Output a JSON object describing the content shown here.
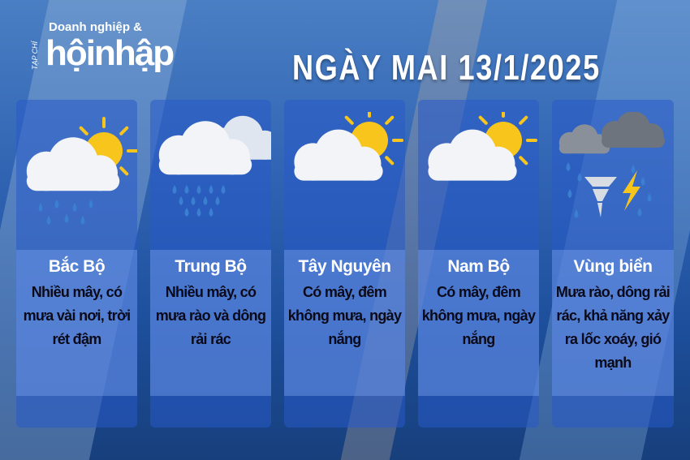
{
  "logo": {
    "tagline": "Doanh nghiệp &",
    "name": "hộinhập",
    "prefix": "TẠP CHÍ"
  },
  "title": "NGÀY MAI 13/1/2025",
  "regions": [
    {
      "name": "Bắc Bộ",
      "desc": "Nhiều mây, có mưa vài nơi, trời rét đậm",
      "icon": "sun-cloud-rain-icon"
    },
    {
      "name": "Trung Bộ",
      "desc": "Nhiều mây, có mưa rào và dông rải rác",
      "icon": "cloud-heavy-rain-icon"
    },
    {
      "name": "Tây Nguyên",
      "desc": "Có mây, đêm không mưa, ngày nắng",
      "icon": "sun-cloud-icon"
    },
    {
      "name": "Nam Bộ",
      "desc": "Có mây, đêm không mưa, ngày nắng",
      "icon": "sun-cloud-icon"
    },
    {
      "name": "Vùng biển",
      "desc": "Mưa rào, dông rải rác, khả năng xảy ra lốc xoáy, gió mạnh",
      "icon": "storm-tornado-icon"
    }
  ],
  "colors": {
    "sun": "#f7c51c",
    "cloud": "#f2f4f8",
    "rain": "#3a7fd0",
    "panel": "#2f63c8"
  }
}
